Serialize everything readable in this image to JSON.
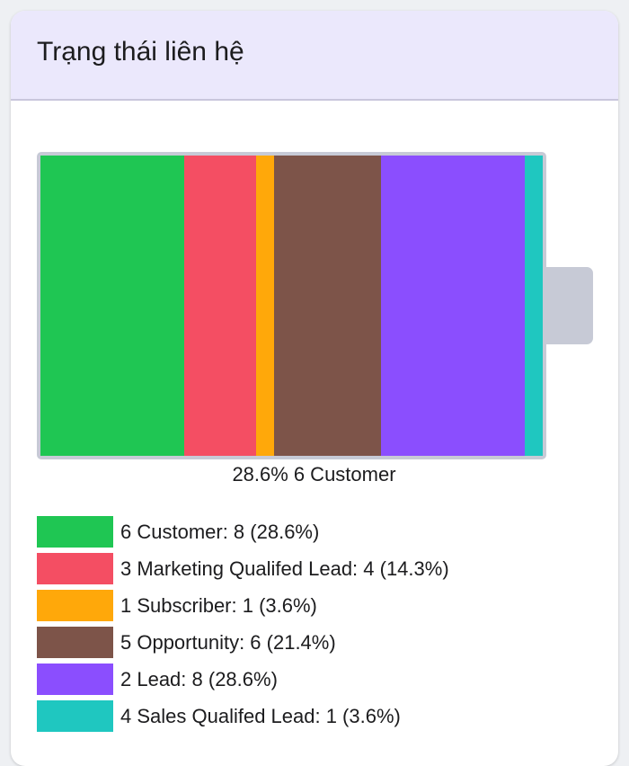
{
  "card": {
    "title": "Trạng thái liên hệ"
  },
  "chart_data": {
    "type": "bar",
    "style": "stacked-100-percent-battery",
    "categories": [
      "6 Customer",
      "3 Marketing Qualifed Lead",
      "1 Subscriber",
      "5 Opportunity",
      "2 Lead",
      "4 Sales Qualifed Lead"
    ],
    "values": [
      8,
      4,
      1,
      6,
      8,
      1
    ],
    "percents": [
      "28.6%",
      "14.3%",
      "3.6%",
      "21.4%",
      "28.6%",
      "3.6%"
    ],
    "colors": [
      "#1fc653",
      "#f44e63",
      "#ffa80a",
      "#7d5449",
      "#8b4efe",
      "#1fc7c0"
    ],
    "legend_position": "bottom",
    "legend_labels": [
      "6 Customer: 8 (28.6%)",
      "3 Marketing Qualifed Lead: 4 (14.3%)",
      "1 Subscriber: 1 (3.6%)",
      "5 Opportunity: 6 (21.4%)",
      "2 Lead: 8 (28.6%)",
      "4 Sales Qualifed Lead: 1 (3.6%)"
    ],
    "caption": {
      "percent": "28.6%",
      "label": "6 Customer"
    }
  }
}
